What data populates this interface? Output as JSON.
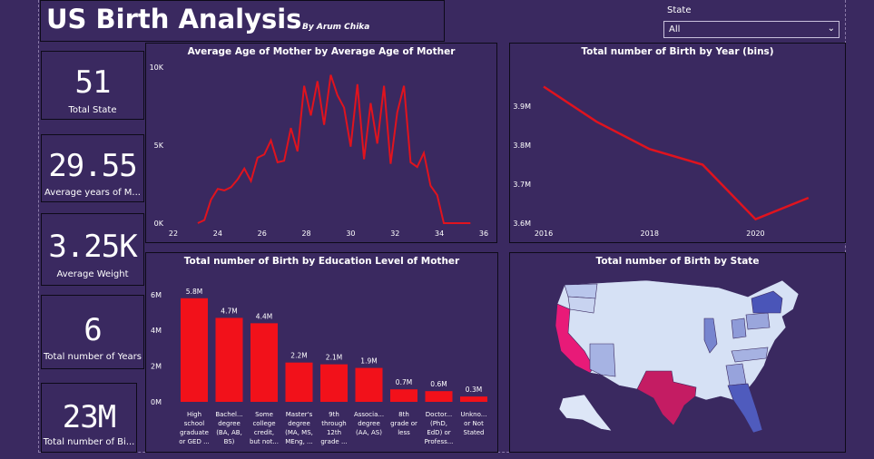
{
  "header": {
    "title": "US Birth Analysis",
    "byline": "By Arum Chika"
  },
  "slicer": {
    "label": "State",
    "value": "All"
  },
  "cards": [
    {
      "value": "51",
      "label": "Total State"
    },
    {
      "value": "29.55",
      "label": "Average years of M..."
    },
    {
      "value": "3.25K",
      "label": "Average Weight"
    },
    {
      "value": "6",
      "label": "Total number of Years"
    },
    {
      "value": "23M",
      "label": "Total number of Bi..."
    }
  ],
  "colors": {
    "background": "#3a2960",
    "line": "#e0131e",
    "bar": "#f2111a",
    "map_low": "#d8e3f6",
    "map_high": "#e0136a"
  },
  "chart_data": [
    {
      "type": "line",
      "title": "Average Age of Mother by Average Age of Mother",
      "x_ticks": [
        "22",
        "24",
        "26",
        "28",
        "30",
        "32",
        "34",
        "36"
      ],
      "y_ticks": [
        "0K",
        "5K",
        "10K"
      ],
      "xlim": [
        22,
        36
      ],
      "ylim": [
        0,
        10000
      ],
      "x": [
        23.1,
        23.4,
        23.7,
        24.0,
        24.3,
        24.6,
        24.9,
        25.2,
        25.5,
        25.8,
        26.1,
        26.4,
        26.7,
        27.0,
        27.3,
        27.6,
        27.9,
        28.2,
        28.5,
        28.8,
        29.1,
        29.4,
        29.7,
        30.0,
        30.3,
        30.6,
        30.9,
        31.2,
        31.5,
        31.8,
        32.1,
        32.4,
        32.7,
        33.0,
        33.3,
        33.6,
        33.9,
        34.2,
        34.5,
        34.8,
        35.1,
        35.4
      ],
      "y": [
        0,
        200,
        1500,
        2200,
        2100,
        2300,
        2800,
        3500,
        2700,
        4200,
        4400,
        5300,
        3900,
        4000,
        6100,
        4600,
        8800,
        6900,
        9100,
        6300,
        9500,
        8200,
        7400,
        4900,
        8900,
        4100,
        7700,
        5100,
        8800,
        3800,
        7100,
        8800,
        3900,
        3600,
        4500,
        2400,
        1800,
        0,
        0,
        0,
        0,
        0
      ]
    },
    {
      "type": "line",
      "title": "Total number of Birth by Year (bins)",
      "x_ticks": [
        "2016",
        "2018",
        "2020"
      ],
      "y_ticks": [
        "3.6M",
        "3.7M",
        "3.8M",
        "3.9M"
      ],
      "xlim": [
        2016,
        2021.5
      ],
      "ylim": [
        3.6,
        4.0
      ],
      "x": [
        2016,
        2017,
        2018,
        2019,
        2020,
        2021
      ],
      "y": [
        3.95,
        3.86,
        3.79,
        3.75,
        3.61,
        3.665
      ]
    },
    {
      "type": "bar",
      "title": "Total number of Birth by Education Level of Mother",
      "y_ticks": [
        "0M",
        "2M",
        "4M",
        "6M"
      ],
      "ylim": [
        0,
        6.6
      ],
      "categories": [
        [
          "High",
          "school",
          "graduate",
          "or GED ..."
        ],
        [
          "Bachel...",
          "degree",
          "(BA, AB,",
          "BS)"
        ],
        [
          "Some",
          "college",
          "credit,",
          "but not..."
        ],
        [
          "Master's",
          "degree",
          "(MA, MS,",
          "MEng, ..."
        ],
        [
          "9th",
          "through",
          "12th",
          "grade ..."
        ],
        [
          "Associa...",
          "degree",
          "(AA, AS)"
        ],
        [
          "8th",
          "grade or",
          "less"
        ],
        [
          "Doctor...",
          "(PhD,",
          "EdD) or",
          "Profess..."
        ],
        [
          "Unkno...",
          "or Not",
          "Stated"
        ]
      ],
      "values": [
        5.8,
        4.7,
        4.4,
        2.2,
        2.1,
        1.9,
        0.7,
        0.6,
        0.3
      ],
      "labels": [
        "5.8M",
        "4.7M",
        "4.4M",
        "2.2M",
        "2.1M",
        "1.9M",
        "0.7M",
        "0.6M",
        "0.3M"
      ]
    },
    {
      "type": "heatmap",
      "title": "Total number of Birth by State"
    }
  ]
}
